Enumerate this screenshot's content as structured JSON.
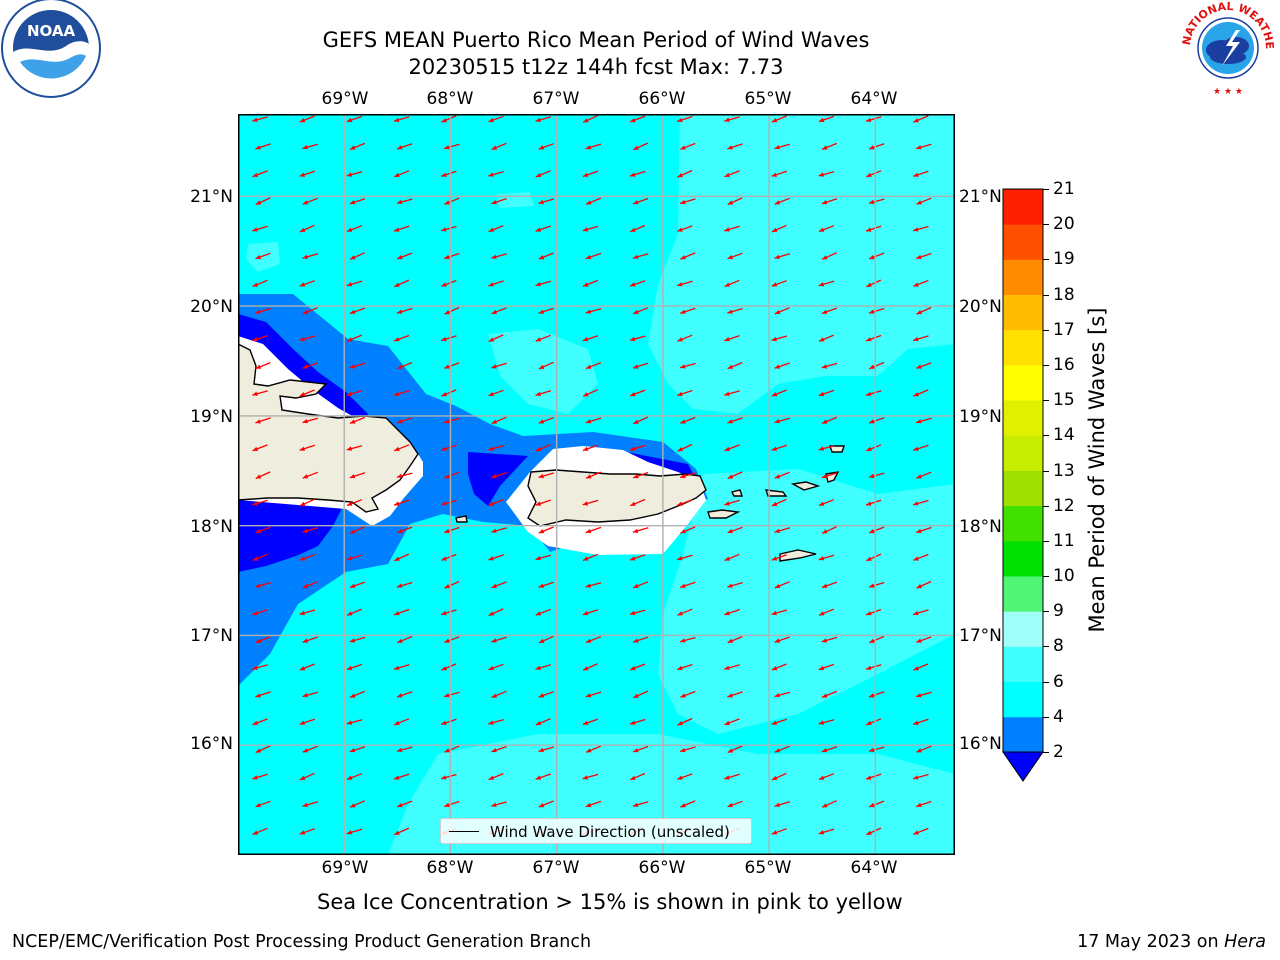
{
  "title": {
    "line1": "GEFS MEAN Puerto Rico Mean Period of Wind Waves",
    "line2": "20230515 t12z 144h fcst   Max: 7.73"
  },
  "map": {
    "lon_labels": [
      "69°W",
      "68°W",
      "67°W",
      "66°W",
      "65°W",
      "64°W"
    ],
    "lat_labels": [
      "21°N",
      "20°N",
      "19°N",
      "18°N",
      "17°N",
      "16°N"
    ],
    "lon_range": [
      -70,
      -63.25
    ],
    "lat_range": [
      15,
      21.75
    ],
    "field_colors": {
      "ocean_4_6": "#00ffff",
      "ocean_6_8": "#40ffff",
      "band_2_4": "#0080ff",
      "band_below_2": "#0000ff",
      "land": "#efedde",
      "no_data": "#ffffff"
    },
    "arrow_color": "#ff0000",
    "legend_label": "Wind Wave Direction (unscaled)"
  },
  "colorbar": {
    "label": "Mean Period of Wind Waves [s]",
    "levels": [
      "2",
      "4",
      "6",
      "8",
      "9",
      "10",
      "11",
      "12",
      "13",
      "14",
      "15",
      "16",
      "17",
      "18",
      "19",
      "20",
      "21"
    ],
    "colors": [
      "#0080ff",
      "#00ffff",
      "#40ffff",
      "#9ffff9",
      "#50f575",
      "#00e000",
      "#40e000",
      "#9fe000",
      "#c7ee00",
      "#e0f000",
      "#ffff00",
      "#ffe000",
      "#ffbc00",
      "#ff8c00",
      "#ff5000",
      "#ff2000"
    ],
    "under_color": "#0000ff"
  },
  "caption": "Sea Ice Concentration > 15% is shown in pink to yellow",
  "footer": {
    "left": "NCEP/EMC/Verification Post Processing Product Generation Branch",
    "right_date": "17 May 2023 on ",
    "right_host": "Hera"
  },
  "logos": {
    "left": "NOAA",
    "right_ring": "NATIONAL WEATHER SERVICE"
  }
}
